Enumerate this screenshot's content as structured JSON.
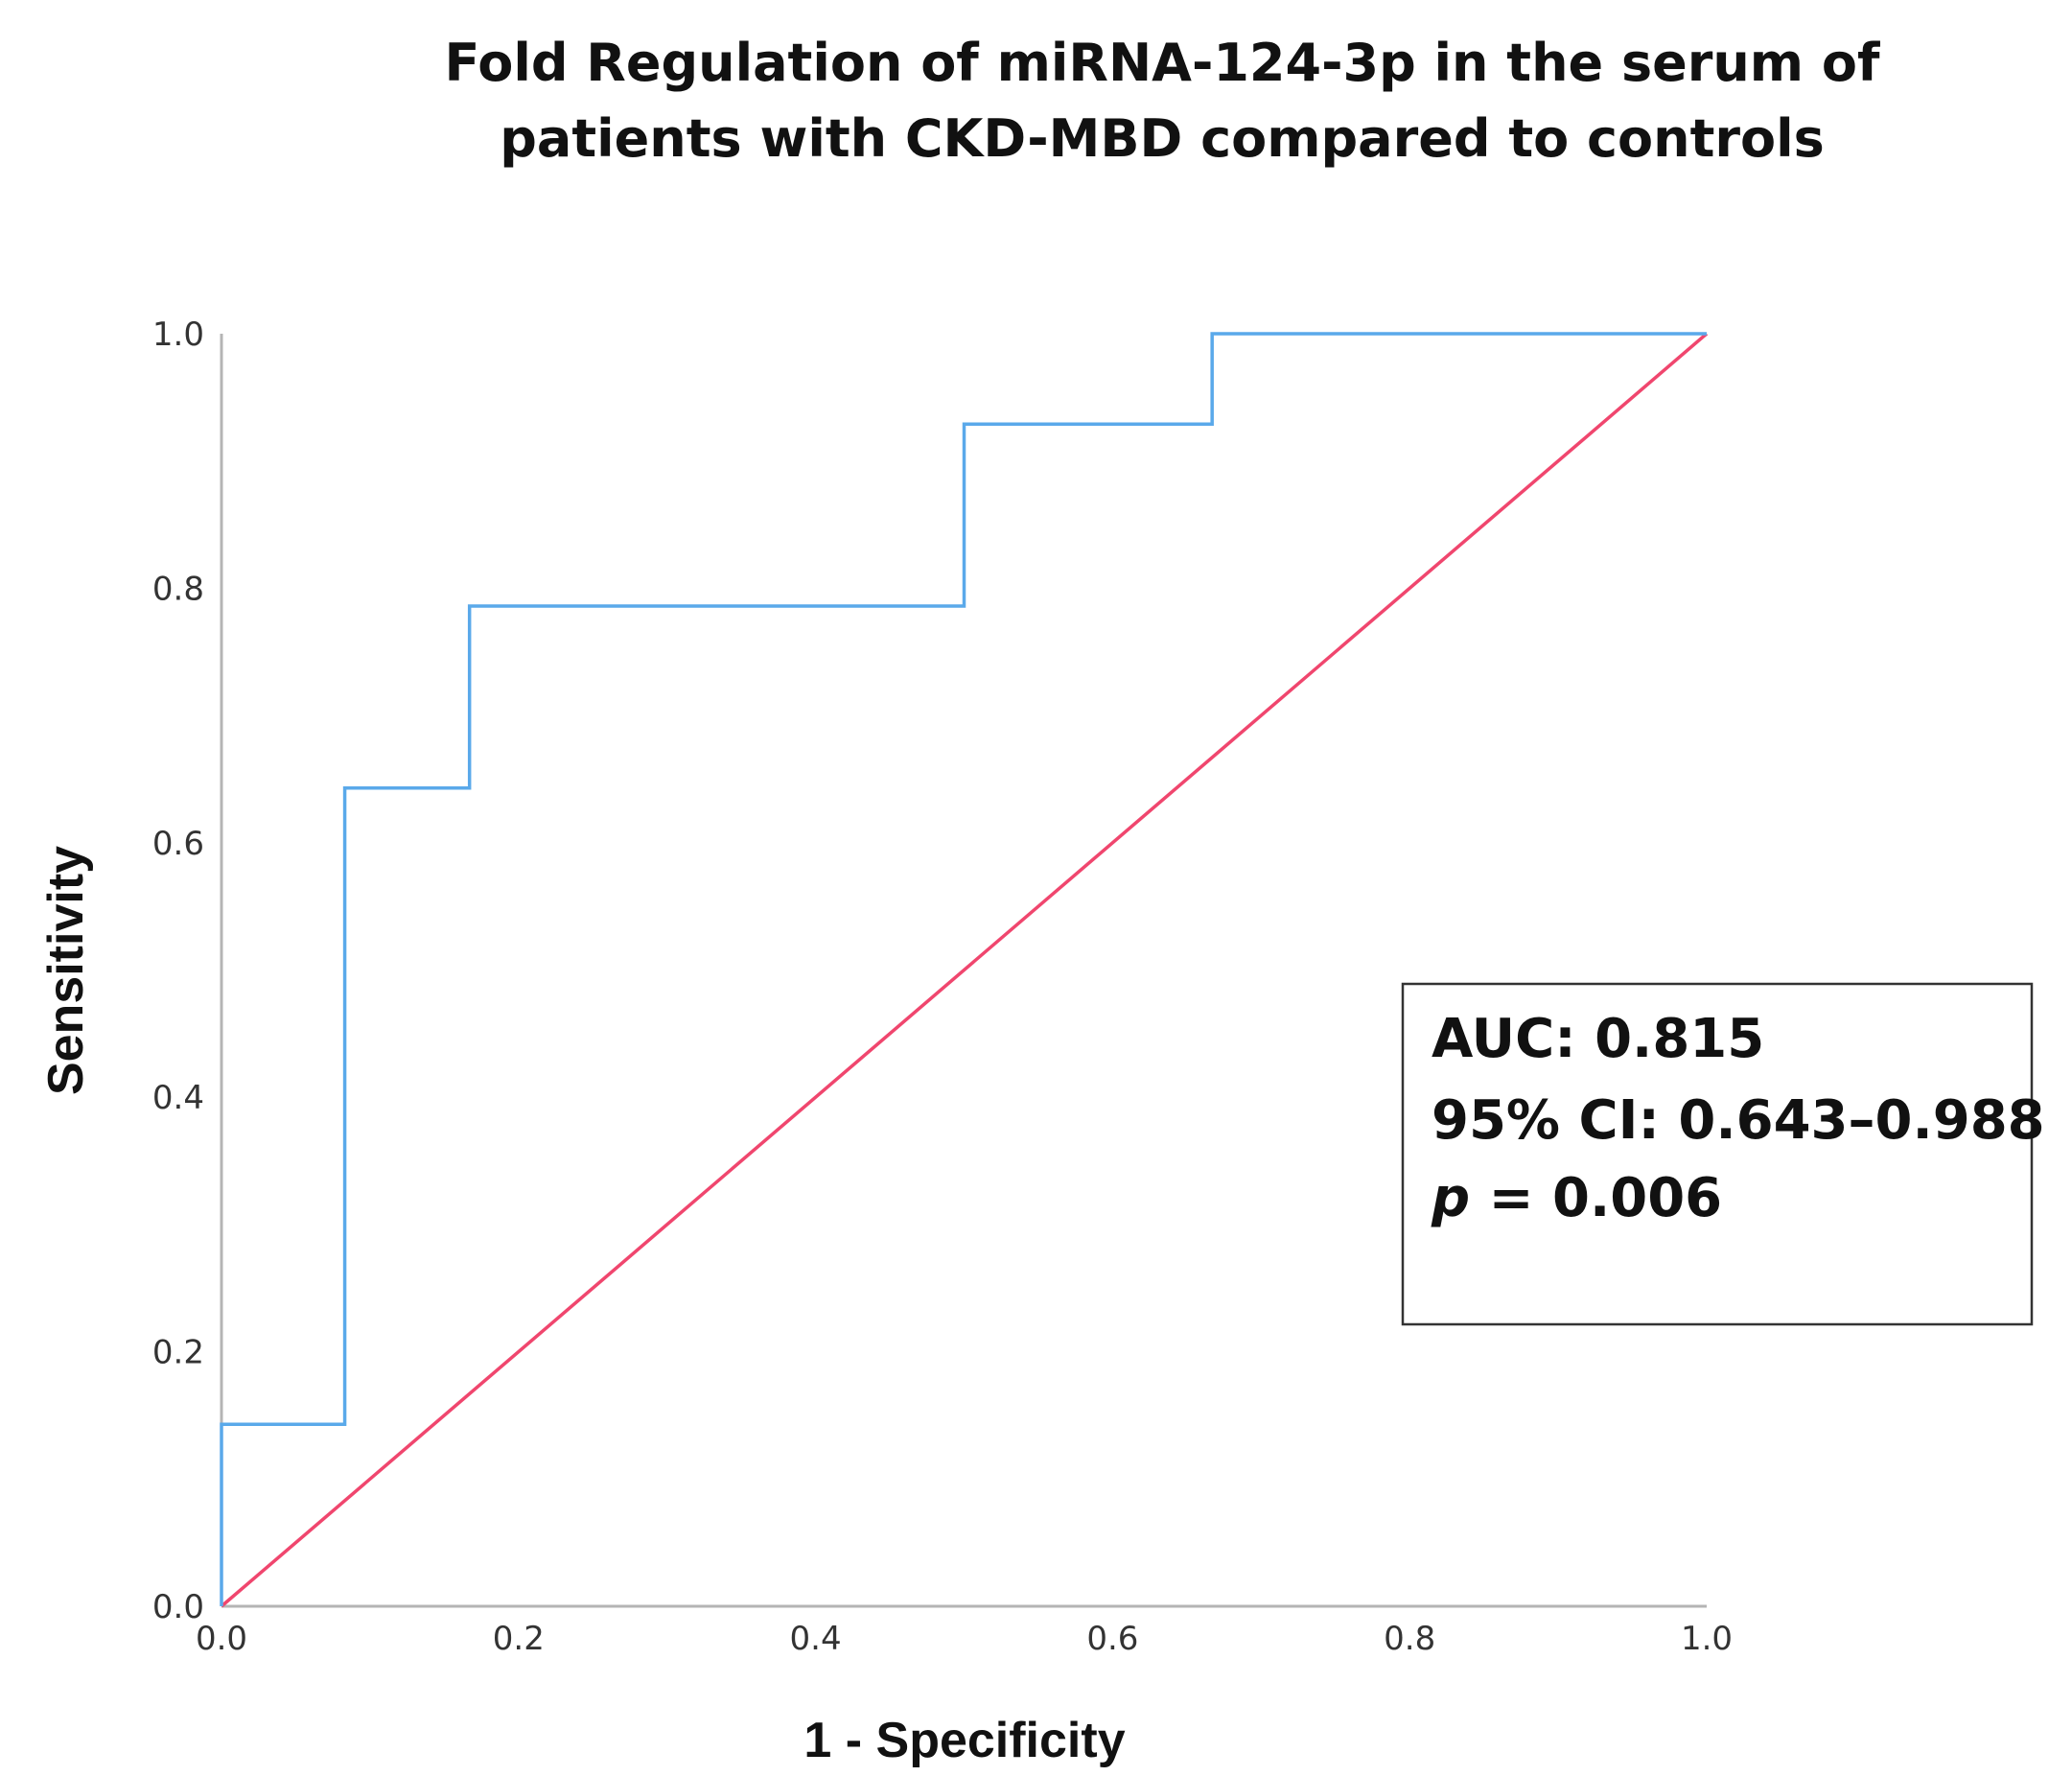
{
  "chart_data": {
    "type": "line",
    "title": "Fold Regulation of miRNA-124-3p in the serum of patients with CKD-MBD compared to controls",
    "title_lines": [
      "Fold Regulation of miRNA-124-3p in the serum of",
      "patients with CKD-MBD compared to controls"
    ],
    "xlabel": "1 - Specificity",
    "ylabel": "Sensitivity",
    "xlim": [
      0.0,
      1.0
    ],
    "ylim": [
      0.0,
      1.0
    ],
    "x_ticks": [
      "0.0",
      "0.2",
      "0.4",
      "0.6",
      "0.8",
      "1.0"
    ],
    "y_ticks": [
      "0.0",
      "0.2",
      "0.4",
      "0.6",
      "0.8",
      "1.0"
    ],
    "grid": false,
    "series": [
      {
        "name": "ROC curve",
        "color": "#5aa9ea",
        "x": [
          0.0,
          0.0,
          0.083,
          0.083,
          0.167,
          0.167,
          0.5,
          0.5,
          0.667,
          0.667,
          1.0
        ],
        "y": [
          0.0,
          0.143,
          0.143,
          0.643,
          0.643,
          0.786,
          0.786,
          0.929,
          0.929,
          1.0,
          1.0
        ]
      },
      {
        "name": "Reference line",
        "color": "#f0466e",
        "x": [
          0.0,
          1.0
        ],
        "y": [
          0.0,
          1.0
        ]
      }
    ],
    "annotation": {
      "auc_text": "AUC: 0.815",
      "ci_text": "95% CI: 0.643–0.988",
      "p_symbol": "p",
      "p_rest": " = 0.006",
      "placement": "lower-right"
    }
  }
}
